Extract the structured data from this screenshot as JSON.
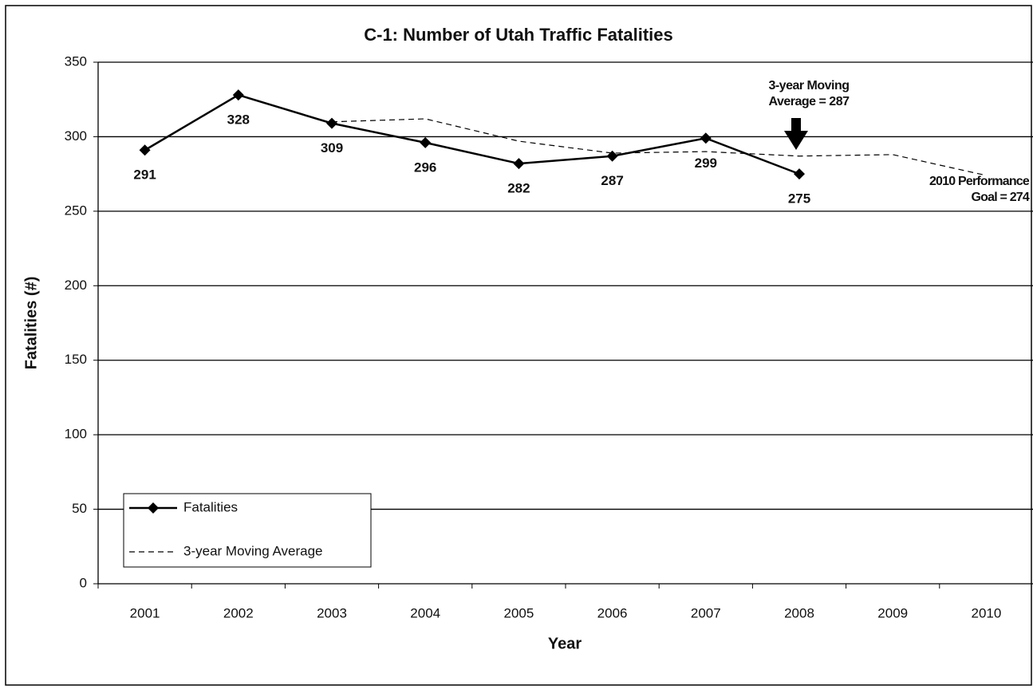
{
  "chart_data": {
    "type": "line",
    "title": "C-1: Number of Utah Traffic Fatalities",
    "x_label": "Year",
    "y_label": "Fatalities (#)",
    "categories": [
      "2001",
      "2002",
      "2003",
      "2004",
      "2005",
      "2006",
      "2007",
      "2008",
      "2009",
      "2010"
    ],
    "series": [
      {
        "name": "Fatalities",
        "color": "#000000",
        "style": "solid",
        "marker": "diamond",
        "data_labels": true,
        "values": [
          291,
          328,
          309,
          296,
          282,
          287,
          299,
          275,
          null,
          null
        ]
      },
      {
        "name": "3-year Moving Average",
        "color": "#000000",
        "style": "dashed",
        "marker": "none",
        "data_labels": false,
        "values": [
          null,
          null,
          310,
          312,
          297,
          289,
          290,
          287,
          288,
          274
        ]
      }
    ],
    "annotations": [
      {
        "lines": [
          "3-year Moving",
          "Average = 287"
        ]
      },
      {
        "lines": [
          "2010 Performance",
          "Goal = 274"
        ]
      }
    ],
    "ylim": [
      0,
      350
    ],
    "yticks": [
      0,
      50,
      100,
      150,
      200,
      250,
      300,
      350
    ],
    "grid": true,
    "legend": "lower left"
  }
}
